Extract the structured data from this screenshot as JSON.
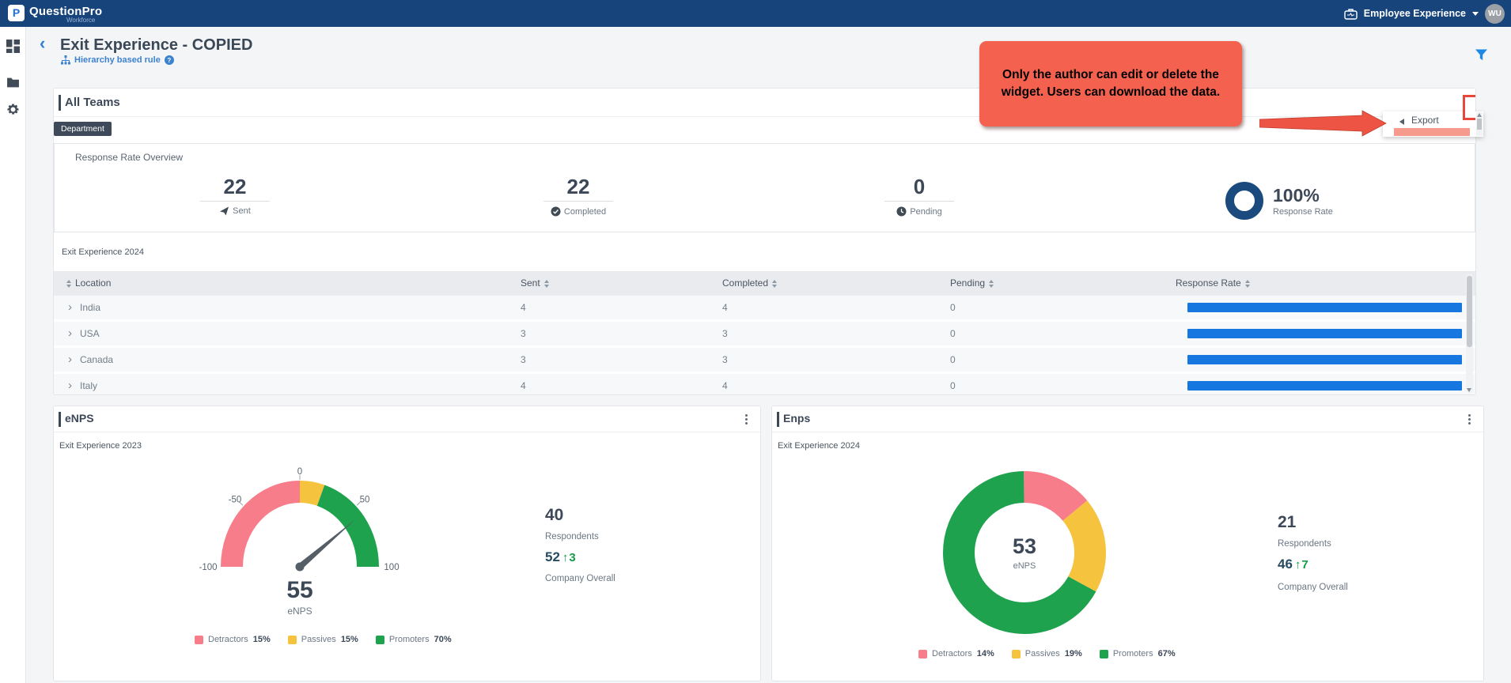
{
  "navbar": {
    "brand": "QuestionPro",
    "brand_sub": "Workforce",
    "workspace": "Employee Experience",
    "avatar": "WU"
  },
  "page": {
    "title": "Exit Experience - COPIED",
    "hierarchy_link": "Hierarchy based rule",
    "help": "?"
  },
  "annotation": {
    "callout": "Only the author can edit or delete the widget. Users can download the data.",
    "menu_item": "Export"
  },
  "all_teams": {
    "title": "All Teams",
    "tag": "Department",
    "overview_title": "Response Rate Overview",
    "stats": [
      {
        "value": "22",
        "label": "Sent"
      },
      {
        "value": "22",
        "label": "Completed"
      },
      {
        "value": "0",
        "label": "Pending"
      }
    ],
    "rate_value": "100%",
    "rate_label": "Response Rate",
    "caption": "Exit Experience 2024",
    "columns": [
      "Location",
      "Sent",
      "Completed",
      "Pending",
      "Response Rate"
    ],
    "rows": [
      {
        "location": "India",
        "sent": "4",
        "completed": "4",
        "pending": "0",
        "rate": 100
      },
      {
        "location": "USA",
        "sent": "3",
        "completed": "3",
        "pending": "0",
        "rate": 100
      },
      {
        "location": "Canada",
        "sent": "3",
        "completed": "3",
        "pending": "0",
        "rate": 100
      },
      {
        "location": "Italy",
        "sent": "4",
        "completed": "4",
        "pending": "0",
        "rate": 100
      }
    ]
  },
  "enps_gauge_widget": {
    "title": "eNPS",
    "caption": "Exit Experience 2023",
    "value": "55",
    "value_label": "eNPS",
    "respondents": "40",
    "respondents_label": "Respondents",
    "company_value": "52",
    "company_delta": "3",
    "company_label": "Company Overall",
    "legend": [
      {
        "name": "Detractors",
        "pct": "15%"
      },
      {
        "name": "Passives",
        "pct": "15%"
      },
      {
        "name": "Promoters",
        "pct": "70%"
      }
    ]
  },
  "enps_donut_widget": {
    "title": "Enps",
    "caption": "Exit Experience 2024",
    "value": "53",
    "value_label": "eNPS",
    "respondents": "21",
    "respondents_label": "Respondents",
    "company_value": "46",
    "company_delta": "7",
    "company_label": "Company Overall",
    "legend": [
      {
        "name": "Detractors",
        "pct": "14%"
      },
      {
        "name": "Passives",
        "pct": "19%"
      },
      {
        "name": "Promoters",
        "pct": "67%"
      }
    ]
  },
  "colors": {
    "navbar_navy": "#17457b",
    "ring_navy": "#1b4b7e",
    "bar_blue": "#1677e0",
    "link_blue": "#3b82d0",
    "annotation_red": "#f4614e",
    "pink": "#f87d8a",
    "yellow": "#f6c33f",
    "green": "#1fa24e",
    "delta_green": "#129e47"
  },
  "chart_data": [
    {
      "type": "gauge",
      "title": "eNPS",
      "min": -100,
      "max": 100,
      "value": 55,
      "tick_labels": [
        -100,
        -50,
        0,
        50,
        100
      ],
      "segments": [
        {
          "name": "Detractors",
          "from": -100,
          "to": 0,
          "color": "#f87d8a"
        },
        {
          "name": "Passives",
          "from": 0,
          "to": 20,
          "color": "#f6c33f"
        },
        {
          "name": "Promoters",
          "from": 20,
          "to": 100,
          "color": "#1fa24e"
        }
      ],
      "legend": [
        "Detractors 15%",
        "Passives 15%",
        "Promoters 70%"
      ],
      "respondents": 40,
      "company_overall": 52,
      "company_delta": 3
    },
    {
      "type": "donut",
      "title": "eNPS",
      "center_value": 53,
      "slices": [
        {
          "name": "Detractors",
          "value": 14,
          "color": "#f87d8a"
        },
        {
          "name": "Passives",
          "value": 19,
          "color": "#f6c33f"
        },
        {
          "name": "Promoters",
          "value": 67,
          "color": "#1fa24e"
        }
      ],
      "legend": [
        "Detractors 14%",
        "Passives 19%",
        "Promoters 67%"
      ],
      "respondents": 21,
      "company_overall": 46,
      "company_delta": 7
    },
    {
      "type": "donut",
      "title": "Response Rate",
      "center_value": "100%",
      "slices": [
        {
          "name": "Response Rate",
          "value": 100,
          "color": "#1b4b7e"
        }
      ]
    },
    {
      "type": "table",
      "title": "Exit Experience 2024",
      "columns": [
        "Location",
        "Sent",
        "Completed",
        "Pending",
        "Response Rate"
      ],
      "rows": [
        [
          "India",
          4,
          4,
          0,
          "100%"
        ],
        [
          "USA",
          3,
          3,
          0,
          "100%"
        ],
        [
          "Canada",
          3,
          3,
          0,
          "100%"
        ],
        [
          "Italy",
          4,
          4,
          0,
          "100%"
        ]
      ]
    }
  ]
}
